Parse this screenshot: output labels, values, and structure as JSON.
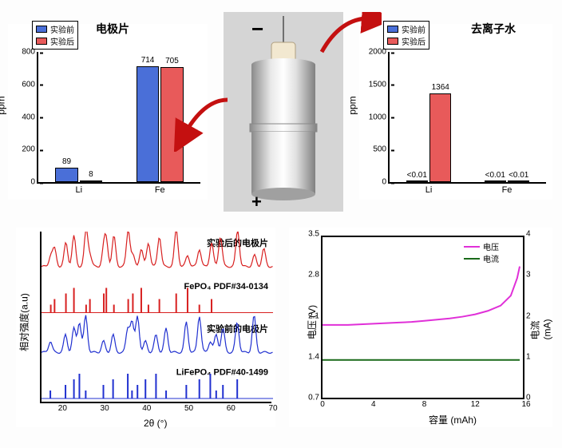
{
  "left_bar": {
    "title": "电极片",
    "ylabel": "ppm",
    "ylim": [
      0,
      800
    ],
    "ytick_step": 200,
    "categories": [
      "Li",
      "Fe"
    ],
    "series": [
      {
        "name": "实验前",
        "color": "#4a6fd8",
        "values": [
          89,
          714
        ]
      },
      {
        "name": "实验后",
        "color": "#e85a5a",
        "values": [
          8,
          705
        ]
      }
    ],
    "value_labels": [
      [
        "89",
        "8"
      ],
      [
        "714",
        "705"
      ]
    ]
  },
  "right_bar": {
    "title": "去离子水",
    "ylabel": "ppm",
    "ylim": [
      0,
      2000
    ],
    "ytick_step": 500,
    "categories": [
      "Li",
      "Fe"
    ],
    "series": [
      {
        "name": "实验前",
        "color": "#4a6fd8",
        "values": [
          0.01,
          0.01
        ]
      },
      {
        "name": "实验后",
        "color": "#e85a5a",
        "values": [
          1364,
          0.01
        ]
      }
    ],
    "value_labels": [
      [
        "<0.01",
        "1364"
      ],
      [
        "<0.01",
        "<0.01"
      ]
    ]
  },
  "xrd": {
    "xlabel": "2θ (°)",
    "ylabel": "相对强度(a.u)",
    "xlim": [
      15,
      70
    ],
    "xtick_step": 10,
    "traces": [
      {
        "label": "实验后的电极片",
        "color": "#d82020",
        "peaks": [
          17.2,
          18.1,
          20.8,
          22.7,
          25.6,
          26.5,
          29.8,
          30.4,
          32.2,
          35.6,
          36.7,
          38.7,
          40.4,
          43.0,
          47.0,
          49.7,
          52.5,
          55.4,
          57.5,
          61.6,
          65.6,
          67.8
        ]
      },
      {
        "label": "FePO₄  PDF#34-0134",
        "color": "#d82020",
        "peaks": [
          17.2,
          18.1,
          20.8,
          22.7,
          25.6,
          26.5,
          29.8,
          30.4,
          32.2,
          35.6,
          36.7,
          38.7,
          40.4,
          43.0,
          47.0,
          49.7,
          52.5,
          55.4
        ]
      },
      {
        "label": "实验前的电极片",
        "color": "#2030d0",
        "peaks": [
          17.1,
          20.7,
          22.7,
          24.0,
          25.5,
          29.7,
          32.0,
          35.5,
          36.5,
          37.8,
          39.7,
          42.2,
          44.6,
          49.4,
          52.5,
          55.1,
          56.5,
          58.1,
          61.5,
          65.5
        ]
      },
      {
        "label": "LiFePO₄  PDF#40-1499",
        "color": "#2030d0",
        "peaks": [
          17.1,
          20.7,
          22.7,
          24.0,
          25.5,
          29.7,
          32.0,
          35.5,
          36.5,
          37.8,
          39.7,
          42.2,
          44.6,
          49.4,
          52.5,
          55.1,
          56.5,
          58.1,
          61.5
        ]
      }
    ]
  },
  "curve": {
    "xlabel": "容量 (mAh)",
    "ylabel_left": "电压 (V)",
    "ylabel_right": "电流 (mA)",
    "xlim": [
      0,
      16
    ],
    "xtick_step": 4,
    "ylim_left": [
      0.7,
      3.5
    ],
    "ytick_left": [
      0.7,
      1.4,
      2.1,
      2.8,
      3.5
    ],
    "ylim_right": [
      0,
      4
    ],
    "ytick_right": [
      0,
      1,
      2,
      3,
      4
    ],
    "series": [
      {
        "name": "电压",
        "color": "#e030d8",
        "width": 2
      },
      {
        "name": "电流",
        "color": "#1a6a1a",
        "width": 2,
        "const_value": 1.0
      }
    ],
    "voltage_points": [
      [
        0,
        2.0
      ],
      [
        1,
        2.0
      ],
      [
        2,
        2.0
      ],
      [
        3,
        2.01
      ],
      [
        4,
        2.02
      ],
      [
        5,
        2.03
      ],
      [
        6,
        2.04
      ],
      [
        7,
        2.05
      ],
      [
        8,
        2.07
      ],
      [
        9,
        2.09
      ],
      [
        10,
        2.11
      ],
      [
        11,
        2.14
      ],
      [
        12,
        2.18
      ],
      [
        13,
        2.24
      ],
      [
        14,
        2.33
      ],
      [
        14.8,
        2.5
      ],
      [
        15.3,
        2.8
      ],
      [
        15.5,
        3.0
      ]
    ]
  },
  "device": {
    "top_symbol": "−",
    "bottom_symbol": "+"
  }
}
